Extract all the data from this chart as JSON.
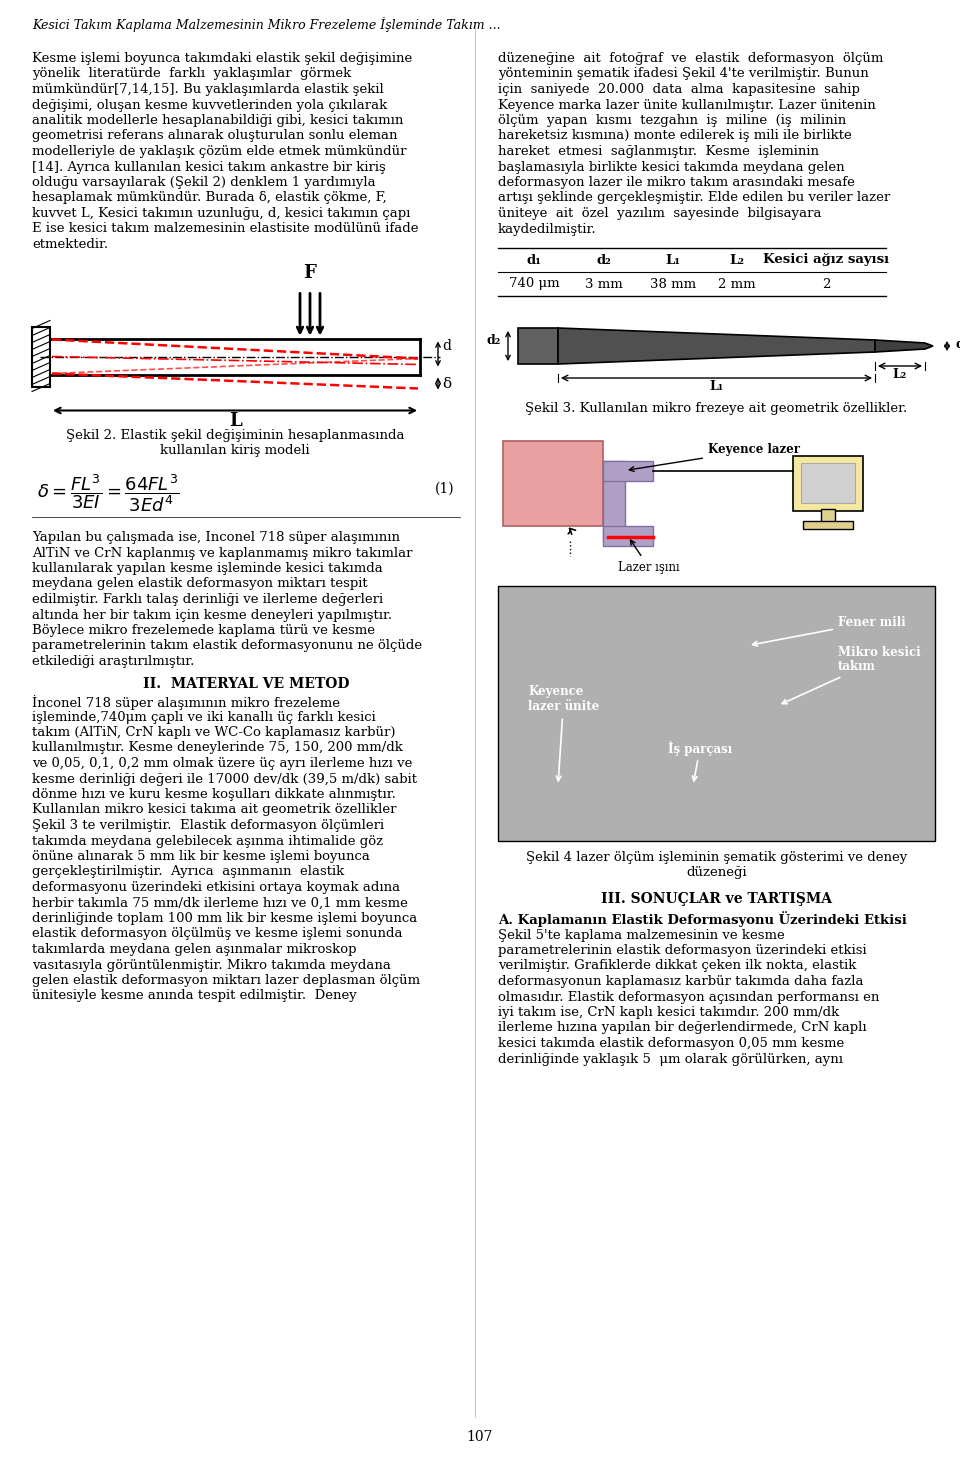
{
  "title": "Kesici Takım Kaplama Malzemesinin Mikro Frezeleme İşleminde Takım ...",
  "page_number": "107",
  "background_color": "#ffffff",
  "left_para1_lines": [
    "Kesme işlemi boyunca takımdaki elastik şekil değişimine",
    "yönelik  literatürde  farklı  yaklaşımlar  görmek",
    "mümkündür[7,14,15]. Bu yaklaşımlarda elastik şekil",
    "değişimi, oluşan kesme kuvvetlerinden yola çıkılarak",
    "analitik modellerle hesaplanabildiği gibi, kesici takımın",
    "geometrisi referans alınarak oluşturulan sonlu eleman",
    "modelleriyle de yaklaşık çözüm elde etmek mümkündür",
    "[14]. Ayrıca kullanılan kesici takım ankastre bir kiriş",
    "olduğu varsayılarak (Şekil 2) denklem 1 yardımıyla",
    "hesaplamak mümkündür. Burada δ, elastik çökme, F,",
    "kuvvet L, Kesici takımın uzunluğu, d, kesici takımın çapı",
    "E ise kesici takım malzemesinin elastisite modülünü ifade",
    "etmektedir."
  ],
  "fig2_caption_line1": "Şekil 2. Elastik şekil değişiminin hesaplanmasında",
  "fig2_caption_line2": "kullanılan kiriş modeli",
  "left_para2_lines": [
    "Yapılan bu çalışmada ise, Inconel 718 süper alaşımının",
    "AlTiN ve CrN kaplanmış ve kaplanmamış mikro takımlar",
    "kullanılarak yapılan kesme işleminde kesici takımda",
    "meydana gelen elastik deformasyon miktarı tespit",
    "edilmiştir. Farklı talaş derinliği ve ilerleme değerleri",
    "altında her bir takım için kesme deneyleri yapılmıştır.",
    "Böylece mikro frezelemede kaplama türü ve kesme",
    "parametrelerinin takım elastik deformasyonunu ne ölçüde",
    "etkilediği araştırılmıştır."
  ],
  "sec2_heading": "II.  MATERYAL VE METOD",
  "left_para3_lines": [
    "İnconel 718 süper alaşımının mikro frezeleme",
    "işleminde,740μm çaplı ve iki kanallı üç farklı kesici",
    "takım (AlTiN, CrN kaplı ve WC-Co kaplamasız karbür)",
    "kullanılmıştır. Kesme deneylerinde 75, 150, 200 mm/dk",
    "ve 0,05, 0,1, 0,2 mm olmak üzere üç ayrı ilerleme hızı ve",
    "kesme derinliği değeri ile 17000 dev/dk (39,5 m/dk) sabit",
    "dönme hızı ve kuru kesme koşulları dikkate alınmıştır.",
    "Kullanılan mikro kesici takıma ait geometrik özellikler",
    "Şekil 3 te verilmiştir.  Elastik deformasyon ölçümleri",
    "takımda meydana gelebilecek aşınma ihtimalide göz",
    "önüne alınarak 5 mm lik bir kesme işlemi boyunca",
    "gerçekleştirilmiştir.  Ayrıca  aşınmanın  elastik",
    "deformasyonu üzerindeki etkisini ortaya koymak adına",
    "herbir takımla 75 mm/dk ilerleme hızı ve 0,1 mm kesme",
    "derinliğinde toplam 100 mm lik bir kesme işlemi boyunca",
    "elastik deformasyon ölçülmüş ve kesme işlemi sonunda",
    "takımlarda meydana gelen aşınmalar mikroskop",
    "vasıtasıyla görüntülenmiştir. Mikro takımda meydana",
    "gelen elastik deformasyon miktarı lazer deplasman ölçüm",
    "ünitesiyle kesme anında tespit edilmiştir.  Deney"
  ],
  "right_para1_lines": [
    "düzeneğine  ait  fotoğraf  ve  elastik  deformasyon  ölçüm",
    "yönteminin şematik ifadesi Şekil 4'te verilmiştir. Bunun",
    "için  saniyede  20.000  data  alma  kapasitesine  sahip",
    "Keyence marka lazer ünite kullanılmıştır. Lazer ünitenin",
    "ölçüm  yapan  kısmı  tezgahın  iş  miline  (iş  milinin",
    "hareketsiz kısmına) monte edilerek iş mili ile birlikte",
    "hareket  etmesi  sağlanmıştır.  Kesme  işleminin",
    "başlamasıyla birlikte kesici takımda meydana gelen",
    "deformasyon lazer ile mikro takım arasındaki mesafe",
    "artışı şeklinde gerçekleşmiştir. Elde edilen bu veriler lazer",
    "üniteye  ait  özel  yazılım  sayesinde  bilgisayara",
    "kaydedilmiştir."
  ],
  "table_headers": [
    "d₁",
    "d₂",
    "L₁",
    "L₂",
    "Kesici ağız sayısı"
  ],
  "table_values": [
    "740 μm",
    "3 mm",
    "38 mm",
    "2 mm",
    "2"
  ],
  "fig3_caption": "Şekil 3. Kullanılan mikro frezeye ait geometrik özellikler.",
  "fig4_labels": {
    "keyence_lazer": "Keyence lazer",
    "lazer_isini": "Lazer ışını",
    "fener_mili": "Fener mili",
    "mikro_kesici": "Mikro kesici\ntakım",
    "keyence_unite": "Keyence\nlazer ünite",
    "is_parcasi": "İş parçası"
  },
  "fig4_caption_line1": "Şekil 4 lazer ölçüm işleminin şematik gösterimi ve deney",
  "fig4_caption_line2": "düzeneği",
  "sec3_heading": "III. SONUÇLAR ve TARTIŞMA",
  "sec3a_heading": "A. Kaplamanın Elastik Deformasyonu Üzerindeki Etkisi",
  "right_para_last_lines": [
    "Şekil 5'te kaplama malzemesinin ve kesme",
    "parametrelerinin elastik deformasyon üzerindeki etkisi",
    "verilmiştir. Grafiklerde dikkat çeken ilk nokta, elastik",
    "deformasyonun kaplamasız karbür takımda daha fazla",
    "olmasıdır. Elastik deformasyon açısından performansı en",
    "iyi takım ise, CrN kaplı kesici takımdır. 200 mm/dk",
    "ilerleme hızına yapılan bir değerlendirmede, CrN kaplı",
    "kesici takımda elastik deformasyon 0,05 mm kesme",
    "derinliğinde yaklaşık 5  μm olarak görülürken, aynı"
  ]
}
